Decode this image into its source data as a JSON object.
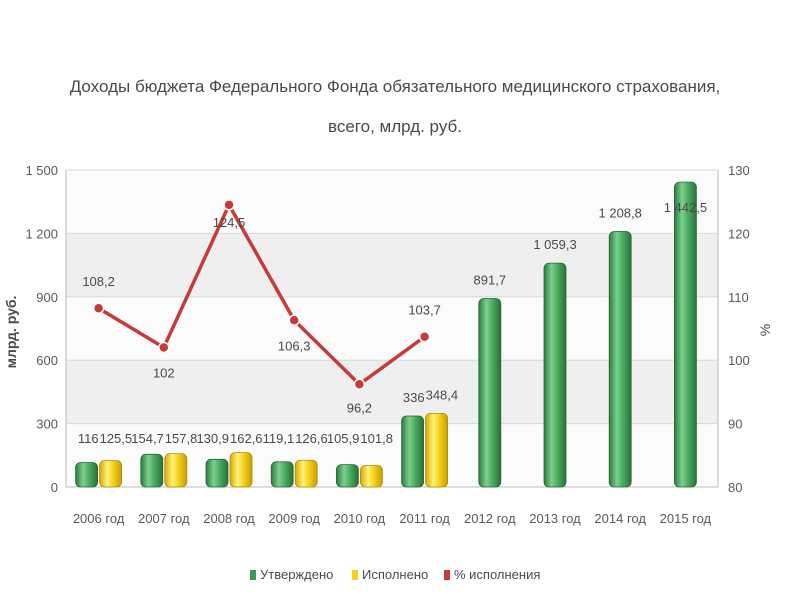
{
  "chart_data": {
    "type": "bar",
    "title_lines": [
      "Доходы бюджета Федерального Фонда обязательного медицинского страхования,",
      "всего, млрд. руб."
    ],
    "categories": [
      "2006 год",
      "2007 год",
      "2008 год",
      "2009 год",
      "2010 год",
      "2011 год",
      "2012 год",
      "2013 год",
      "2014 год",
      "2015 год"
    ],
    "series": [
      {
        "name": "Утверждено",
        "type": "bar",
        "axis": "left",
        "color": "#3c9a52",
        "values": [
          116,
          154.7,
          130.9,
          119.1,
          105.9,
          336,
          891.7,
          1059.3,
          1208.8,
          1442.5
        ],
        "labels": [
          "116",
          "154,7",
          "130,9",
          "119,1",
          "105,9",
          "336",
          "891,7",
          "1 059,3",
          "1 208,8",
          "1 442,5"
        ]
      },
      {
        "name": "Исполнено",
        "type": "bar",
        "axis": "left",
        "color": "#f2d21a",
        "values": [
          125.5,
          157.8,
          162.6,
          126.6,
          101.8,
          348.4,
          null,
          null,
          null,
          null
        ],
        "labels": [
          "125,5",
          "157,8",
          "162,6",
          "126,6",
          "101,8",
          "348,4",
          "",
          "",
          "",
          ""
        ]
      },
      {
        "name": "% исполнения",
        "type": "line",
        "axis": "right",
        "color": "#c73a3a",
        "values": [
          108.2,
          102,
          124.5,
          106.3,
          96.2,
          103.7,
          null,
          null,
          null,
          null
        ],
        "labels": [
          "108,2",
          "102",
          "124,5",
          "106,3",
          "96,2",
          "103,7",
          "",
          "",
          "",
          ""
        ]
      }
    ],
    "ylabel": "млрд. руб.",
    "ylabel_right": "%",
    "ylim": [
      0,
      1500
    ],
    "y_ticks": [
      0,
      300,
      600,
      900,
      1200,
      1500
    ],
    "y_tick_labels": [
      "0",
      "300",
      "600",
      "900",
      "1 200",
      "1 500"
    ],
    "ylim_right": [
      80,
      130
    ],
    "y_ticks_right": [
      80,
      90,
      100,
      110,
      120,
      130
    ],
    "y_tick_labels_right": [
      "80",
      "90",
      "100",
      "110",
      "120",
      "130"
    ],
    "grid": true,
    "legend_position": "bottom"
  }
}
